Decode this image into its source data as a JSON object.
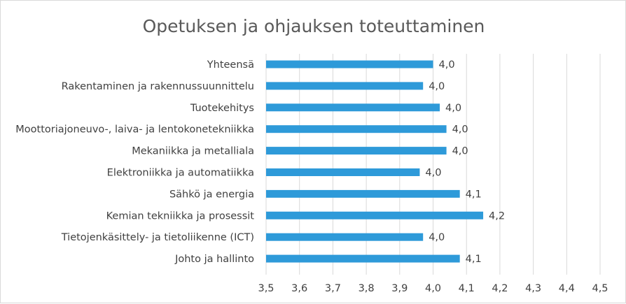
{
  "chart_data": {
    "type": "bar",
    "orientation": "horizontal",
    "title": "Opetuksen ja ohjauksen toteuttaminen",
    "categories": [
      "Yhteensä",
      "Rakentaminen ja rakennussuunnittelu",
      "Tuotekehitys",
      "Moottoriajoneuvo-, laiva- ja lentokonetekniikka",
      "Mekaniikka ja metalliala",
      "Elektroniikka ja automatiikka",
      "Sähkö ja energia",
      "Kemian tekniikka ja prosessit",
      "Tietojenkäsittely- ja tietoliikenne (ICT)",
      "Johto ja hallinto"
    ],
    "values": [
      4.0,
      3.97,
      4.02,
      4.04,
      4.04,
      3.96,
      4.08,
      4.15,
      3.97,
      4.08
    ],
    "data_labels": [
      "4,0",
      "4,0",
      "4,0",
      "4,0",
      "4,0",
      "4,0",
      "4,1",
      "4,2",
      "4,0",
      "4,1"
    ],
    "xlim": [
      3.5,
      4.5
    ],
    "xticks": [
      3.5,
      3.6,
      3.7,
      3.8,
      3.9,
      4.0,
      4.1,
      4.2,
      4.3,
      4.4,
      4.5
    ],
    "xtick_labels": [
      "3,5",
      "3,6",
      "3,7",
      "3,8",
      "3,9",
      "4,0",
      "4,1",
      "4,2",
      "4,3",
      "4,4",
      "4,5"
    ],
    "grid": true,
    "legend": "none",
    "xlabel": "",
    "ylabel": "",
    "colors": {
      "bar": "#2e9ad9",
      "grid": "#d9d9d9",
      "text": "#404040",
      "title": "#595959"
    }
  }
}
